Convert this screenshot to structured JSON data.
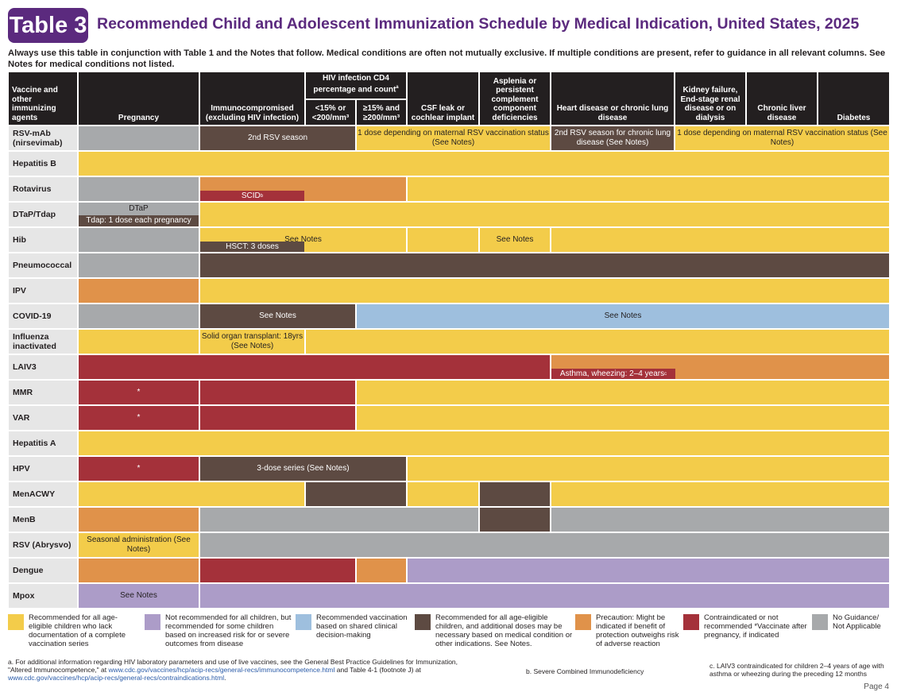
{
  "header": {
    "badge": "Table 3",
    "title": "Recommended Child and Adolescent Immunization Schedule by Medical Indication, United States, 2025",
    "intro": "Always use this table in conjunction with Table 1 and the Notes that follow. Medical conditions are often not mutually exclusive. If multiple conditions are present, refer to guidance in all relevant columns. See Notes for medical conditions not listed."
  },
  "columns": {
    "vaccine": "Vaccine and other immunizing agents",
    "pregnancy": "Pregnancy",
    "immuno": "Immunocompromised (excluding HIV infection)",
    "hiv_group": "HIV infection CD4 percentage and count",
    "hiv_group_sup": "a",
    "hiv_low": "<15% or <200/mm³",
    "hiv_high": "≥15% and ≥200/mm³",
    "csf": "CSF leak or cochlear implant",
    "asplenia": "Asplenia or persistent complement component deficiencies",
    "heart": "Heart disease or chronic lung disease",
    "kidney": "Kidney failure, End-stage renal disease or on dialysis",
    "liver": "Chronic liver disease",
    "diabetes": "Diabetes"
  },
  "rows": [
    {
      "vaccine": "RSV-mAb (nirsevimab)",
      "texts": [
        "2nd RSV season",
        "1 dose depending on maternal RSV vaccination status (See Notes)",
        "2nd RSV season for chronic lung disease (See Notes)",
        "1 dose depending on maternal RSV vaccination status (See Notes)"
      ]
    },
    {
      "vaccine": "Hepatitis B",
      "texts": []
    },
    {
      "vaccine": "Rotavirus",
      "texts": [
        "SCID",
        "b"
      ]
    },
    {
      "vaccine": "DTaP/Tdap",
      "texts": [
        "DTaP",
        "Tdap: 1 dose each pregnancy"
      ]
    },
    {
      "vaccine": "Hib",
      "texts": [
        "HSCT: 3 doses",
        "See Notes",
        "See Notes"
      ]
    },
    {
      "vaccine": "Pneumococcal",
      "texts": []
    },
    {
      "vaccine": "IPV",
      "texts": []
    },
    {
      "vaccine": "COVID-19",
      "texts": [
        "See Notes",
        "See Notes"
      ]
    },
    {
      "vaccine": "Influenza inactivated",
      "texts": [
        "Solid organ transplant: 18yrs (See Notes)"
      ]
    },
    {
      "vaccine": "LAIV3",
      "texts": [
        "Asthma, wheezing: 2–4 years",
        "c"
      ]
    },
    {
      "vaccine": "MMR",
      "texts": [
        "*"
      ]
    },
    {
      "vaccine": "VAR",
      "texts": [
        "*"
      ]
    },
    {
      "vaccine": "Hepatitis A",
      "texts": []
    },
    {
      "vaccine": "HPV",
      "texts": [
        "*",
        "3-dose series (See Notes)"
      ]
    },
    {
      "vaccine": "MenACWY",
      "texts": []
    },
    {
      "vaccine": "MenB",
      "texts": []
    },
    {
      "vaccine": "RSV (Abrysvo)",
      "texts": [
        "Seasonal administration (See Notes)"
      ]
    },
    {
      "vaccine": "Dengue",
      "texts": []
    },
    {
      "vaccine": "Mpox",
      "texts": [
        "See Notes"
      ]
    }
  ],
  "legend": [
    {
      "color": "#f3cc4a",
      "text": "Recommended for all age-eligible children who lack documentation of a complete vaccination series"
    },
    {
      "color": "#ac9cc8",
      "text": "Not recommended for all children, but recommended for some children based on increased risk for or severe outcomes from disease"
    },
    {
      "color": "#9ebfde",
      "text": "Recommended vaccination based on shared clinical decision-making"
    },
    {
      "color": "#5d4a42",
      "text": "Recommended for all age-eligible children, and additional doses may be necessary based on medical condition or other indications. See Notes."
    },
    {
      "color": "#e0924a",
      "text": "Precaution: Might be indicated if benefit of protection outweighs risk of adverse reaction"
    },
    {
      "color": "#a4313a",
      "text": "Contraindicated or not recommended *Vaccinate after pregnancy, if indicated"
    },
    {
      "color": "#a7a9ab",
      "text": "No Guidance/ Not Applicable"
    }
  ],
  "footnotes": {
    "a_label": "a.",
    "a_text1": "For additional information regarding HIV laboratory parameters and use of live vaccines, see the General Best Practice Guidelines for Immunization, \"Altered Immunocompetence,\" at ",
    "a_link1": "www.cdc.gov/vaccines/hcp/acip-recs/general-recs/immunocompetence.html",
    "a_text2": " and Table 4-1 (footnote J) at ",
    "a_link2": "www.cdc.gov/vaccines/hcp/acip-recs/general-recs/contraindications.html",
    "a_text3": ".",
    "b": "b.  Severe Combined Immunodeficiency",
    "c": "c.  LAIV3 contraindicated for children 2–4 years of age with asthma or wheezing during the preceding 12 months"
  },
  "page": "Page 4",
  "colors": {
    "yellow": "#f3cc4a",
    "purple": "#ac9cc8",
    "blue": "#9ebfde",
    "brown": "#5d4a42",
    "orange": "#e0924a",
    "red": "#a4313a",
    "gray": "#a7a9ab",
    "brand": "#5b2a7e"
  }
}
